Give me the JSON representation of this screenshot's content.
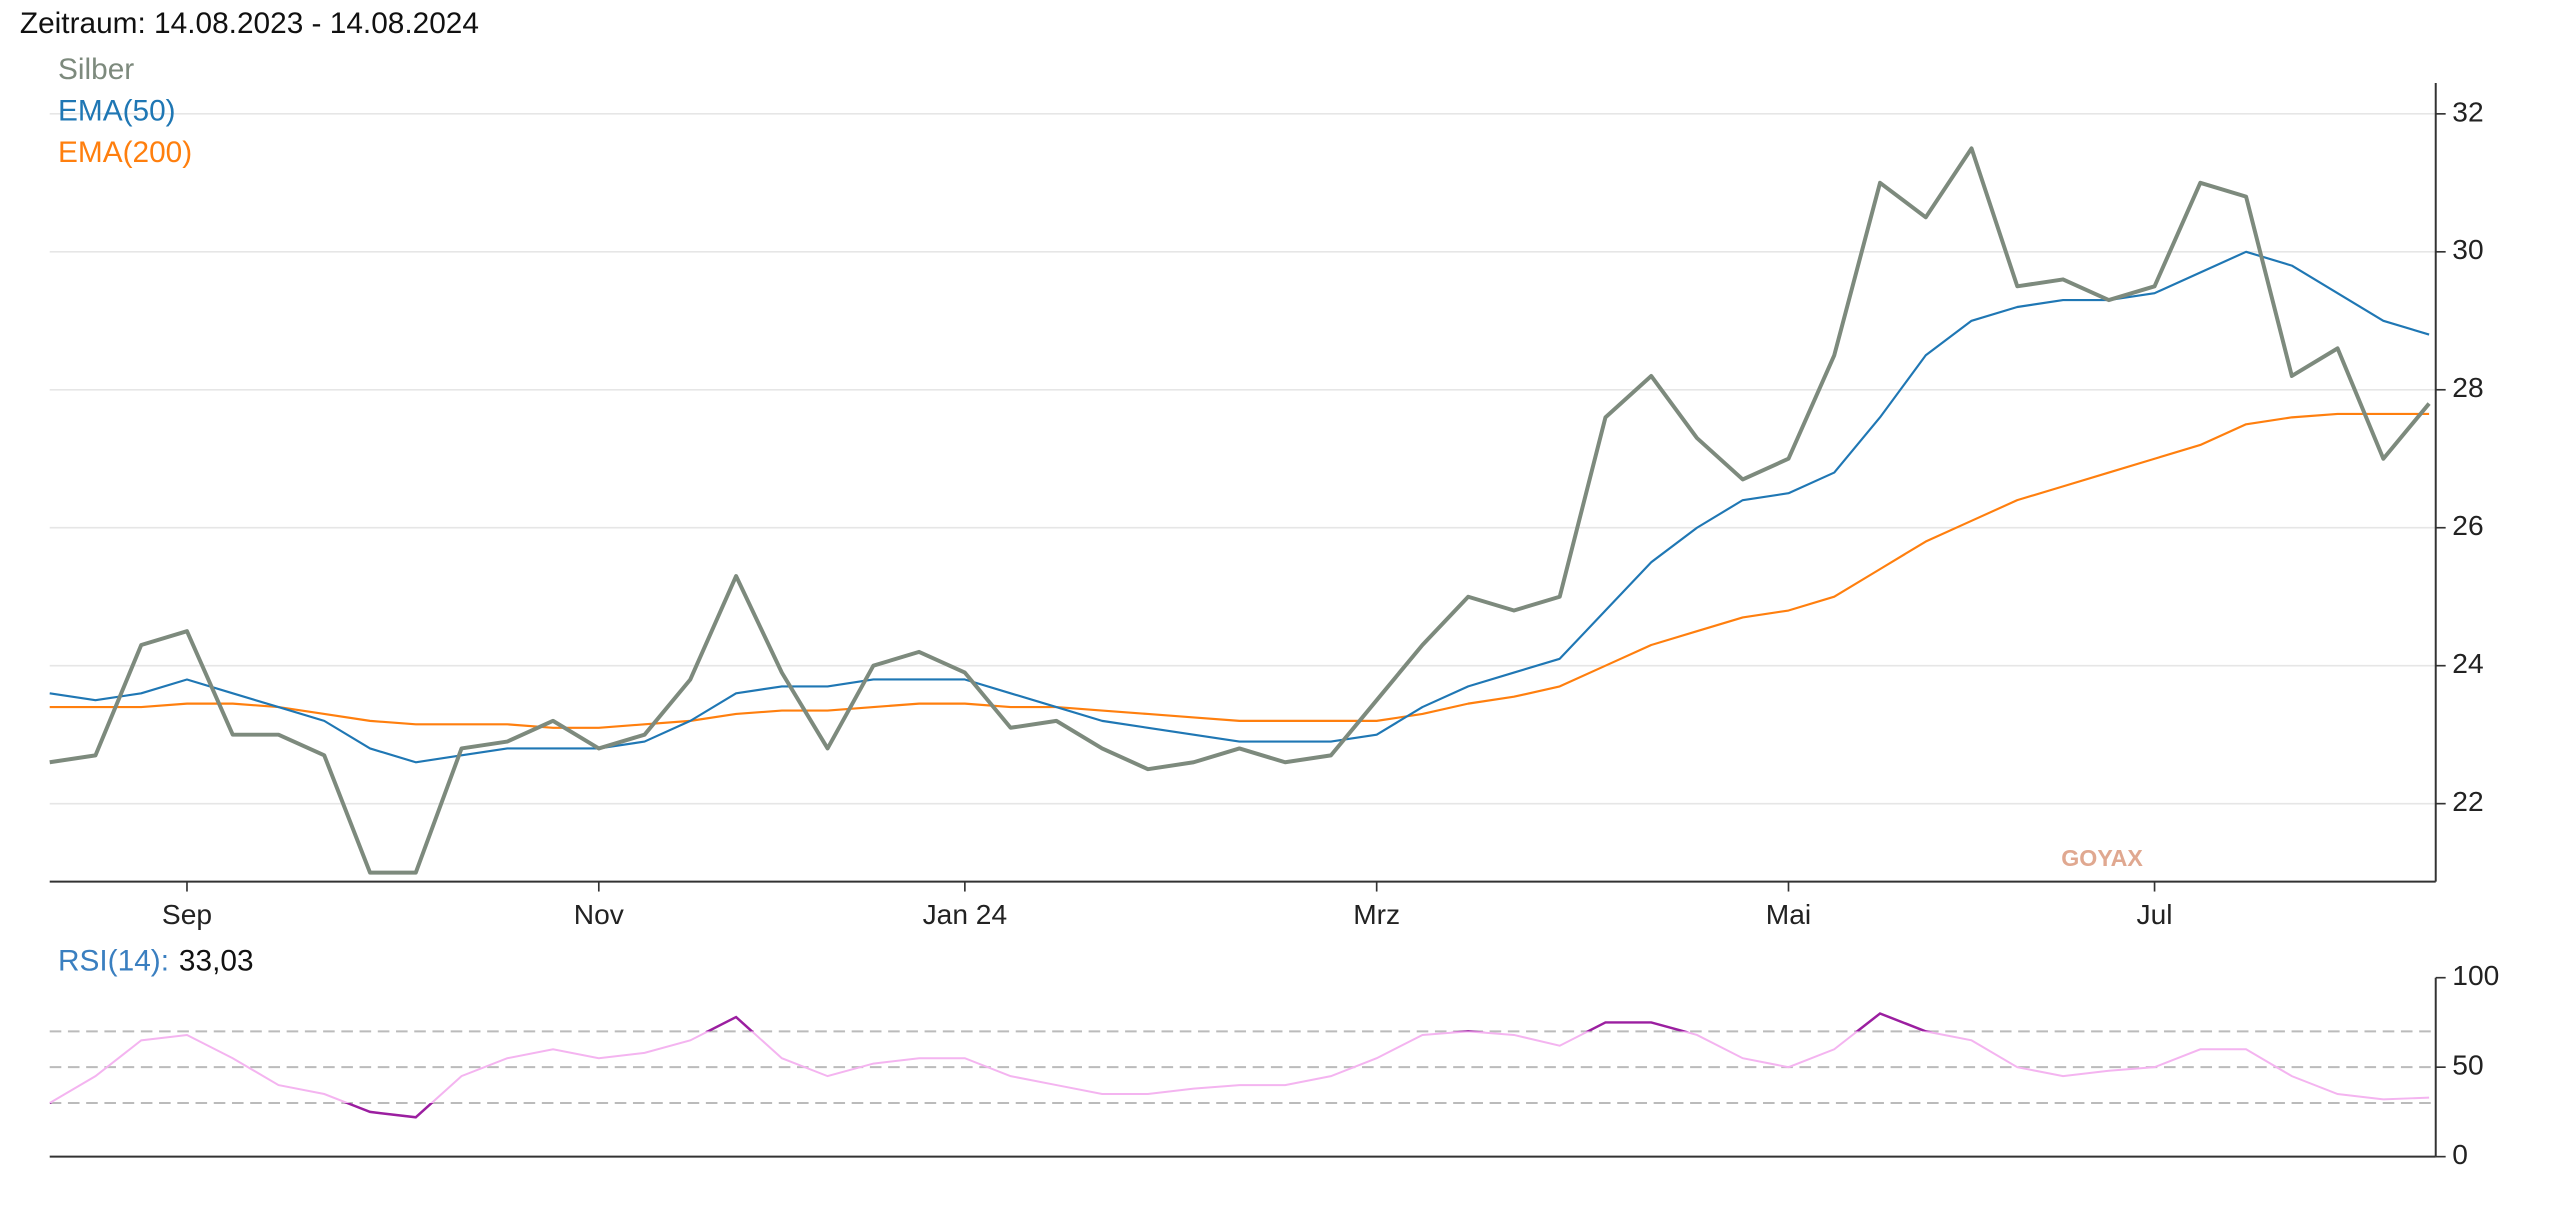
{
  "title": "Zeitraum: 14.08.2023 - 14.08.2024",
  "watermark": "GOYAX",
  "chart_data": [
    {
      "type": "line",
      "categories": [
        null,
        null,
        null,
        "Sep",
        null,
        null,
        null,
        null,
        null,
        null,
        null,
        null,
        "Nov",
        null,
        null,
        null,
        null,
        null,
        null,
        null,
        "Jan 24",
        null,
        null,
        null,
        null,
        null,
        null,
        null,
        null,
        "Mrz",
        null,
        null,
        null,
        null,
        null,
        null,
        null,
        null,
        "Mai",
        null,
        null,
        null,
        null,
        null,
        null,
        null,
        "Jul",
        null,
        null,
        null,
        null,
        null,
        null
      ],
      "series": [
        {
          "name": "Silber",
          "color": "#7d8a7d",
          "width": 2.4,
          "values": [
            22.6,
            22.7,
            24.3,
            24.5,
            23.0,
            23.0,
            22.7,
            21.0,
            21.0,
            22.8,
            22.9,
            23.2,
            22.8,
            23.0,
            23.8,
            25.3,
            23.9,
            22.8,
            24.0,
            24.2,
            23.9,
            23.1,
            23.2,
            22.8,
            22.5,
            22.6,
            22.8,
            22.6,
            22.7,
            23.5,
            24.3,
            25.0,
            24.8,
            25.0,
            27.6,
            28.2,
            27.3,
            26.7,
            27.0,
            28.5,
            31.0,
            30.5,
            31.5,
            29.5,
            29.6,
            29.3,
            29.5,
            31.0,
            30.8,
            28.2,
            28.6,
            27.0,
            27.8
          ]
        },
        {
          "name": "EMA(50)",
          "color": "#1f77b4",
          "width": 1.3,
          "values": [
            23.6,
            23.5,
            23.6,
            23.8,
            23.6,
            23.4,
            23.2,
            22.8,
            22.6,
            22.7,
            22.8,
            22.8,
            22.8,
            22.9,
            23.2,
            23.6,
            23.7,
            23.7,
            23.8,
            23.8,
            23.8,
            23.6,
            23.4,
            23.2,
            23.1,
            23.0,
            22.9,
            22.9,
            22.9,
            23.0,
            23.4,
            23.7,
            23.9,
            24.1,
            24.8,
            25.5,
            26.0,
            26.4,
            26.5,
            26.8,
            27.6,
            28.5,
            29.0,
            29.2,
            29.3,
            29.3,
            29.4,
            29.7,
            30.0,
            29.8,
            29.4,
            29.0,
            28.8
          ]
        },
        {
          "name": "EMA(200)",
          "color": "#ff7f0e",
          "width": 1.3,
          "values": [
            23.4,
            23.4,
            23.4,
            23.45,
            23.45,
            23.4,
            23.3,
            23.2,
            23.15,
            23.15,
            23.15,
            23.1,
            23.1,
            23.15,
            23.2,
            23.3,
            23.35,
            23.35,
            23.4,
            23.45,
            23.45,
            23.4,
            23.4,
            23.35,
            23.3,
            23.25,
            23.2,
            23.2,
            23.2,
            23.2,
            23.3,
            23.45,
            23.55,
            23.7,
            24.0,
            24.3,
            24.5,
            24.7,
            24.8,
            25.0,
            25.4,
            25.8,
            26.1,
            26.4,
            26.6,
            26.8,
            27.0,
            27.2,
            27.5,
            27.6,
            27.65,
            27.65,
            27.65
          ]
        }
      ],
      "ylim": [
        20.87,
        32.4
      ],
      "yticks": [
        22,
        24,
        26,
        28,
        30,
        32
      ],
      "grid": true
    },
    {
      "type": "line",
      "series": [
        {
          "name": "RSI(14):",
          "color": "#f4b4f0",
          "extreme_color": "#9b1fa0",
          "current": "33,03",
          "values": [
            30,
            45,
            65,
            68,
            55,
            40,
            35,
            25,
            22,
            45,
            55,
            60,
            55,
            58,
            65,
            78,
            55,
            45,
            52,
            55,
            55,
            45,
            40,
            35,
            35,
            38,
            40,
            40,
            45,
            55,
            68,
            70,
            68,
            62,
            75,
            75,
            68,
            55,
            50,
            60,
            80,
            70,
            65,
            50,
            45,
            48,
            50,
            60,
            60,
            45,
            35,
            32,
            33
          ]
        }
      ],
      "ylim": [
        0,
        100
      ],
      "yticks": [
        0,
        50,
        100
      ],
      "levels": [
        30,
        50,
        70
      ]
    }
  ]
}
